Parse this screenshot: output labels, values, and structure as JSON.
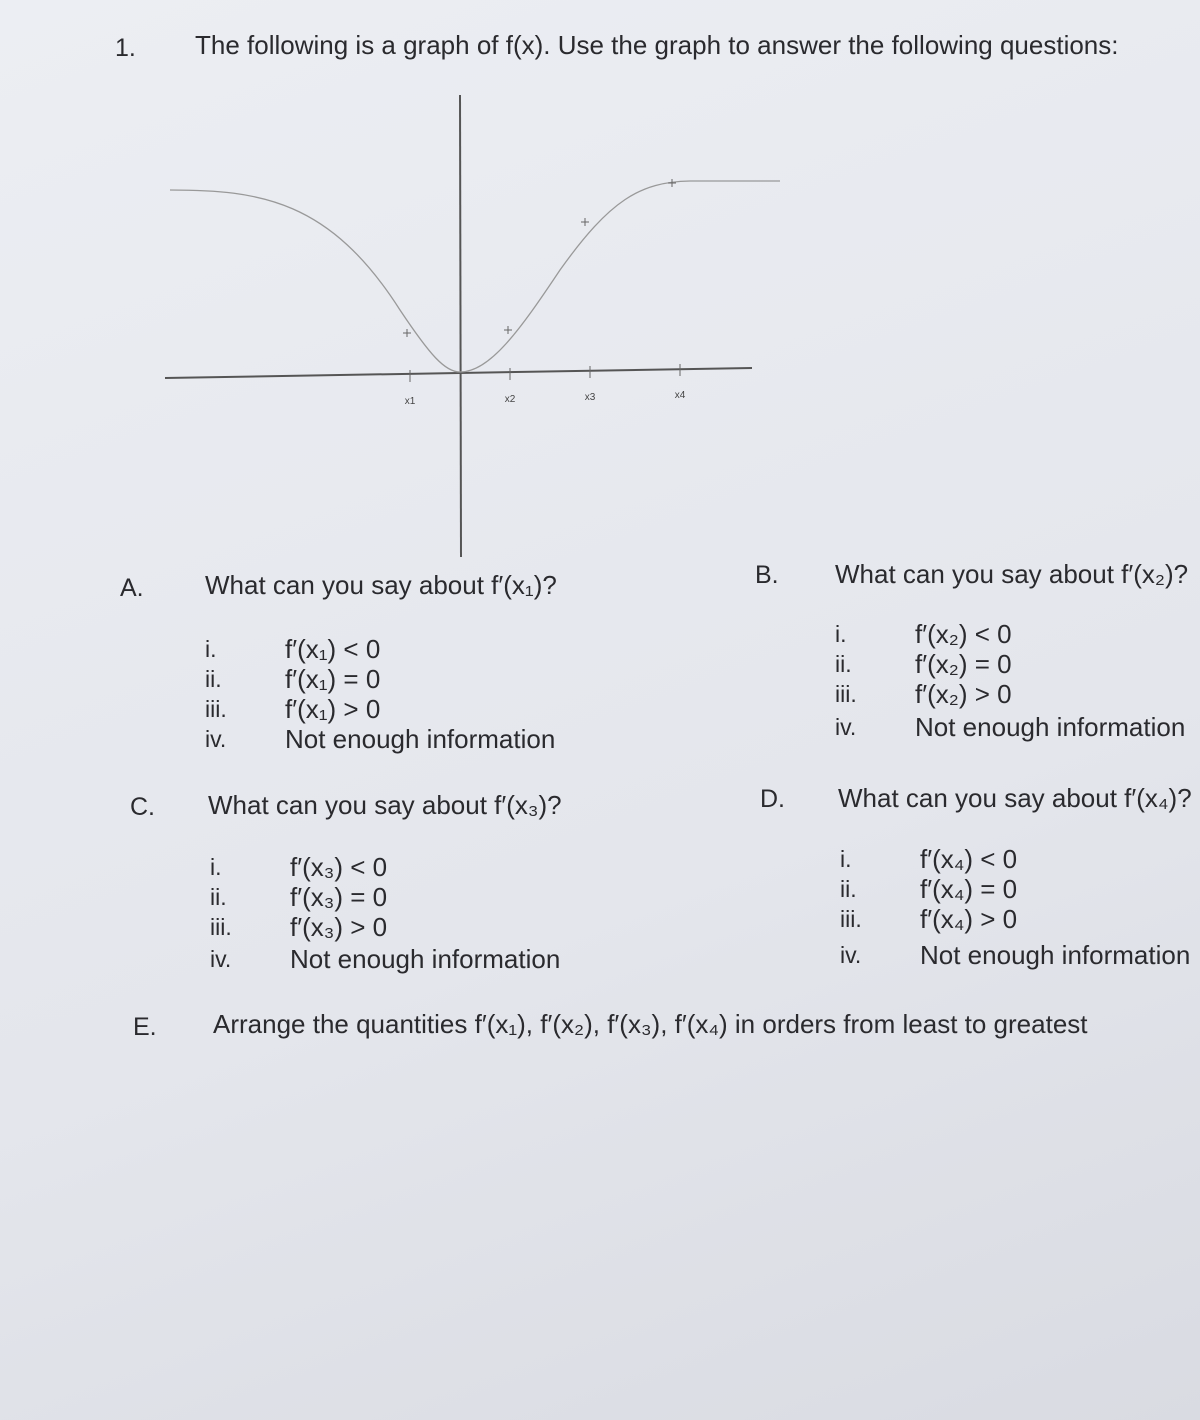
{
  "question": {
    "number": "1.",
    "prompt": "The following is a graph of f(x). Use the graph to answer the following questions:"
  },
  "graph": {
    "labels": [
      "x1",
      "x2",
      "x3",
      "x4"
    ]
  },
  "parts": [
    {
      "letter": "A.",
      "question": "What can you say about f′(x₁)?",
      "options": [
        {
          "numeral": "i.",
          "text": "f′(x₁) < 0"
        },
        {
          "numeral": "ii.",
          "text": "f′(x₁) = 0"
        },
        {
          "numeral": "iii.",
          "text": "f′(x₁) > 0"
        },
        {
          "numeral": "iv.",
          "text": "Not enough information"
        }
      ]
    },
    {
      "letter": "B.",
      "question": "What can you say about f′(x₂)?",
      "options": [
        {
          "numeral": "i.",
          "text": "f′(x₂) < 0"
        },
        {
          "numeral": "ii.",
          "text": "f′(x₂) = 0"
        },
        {
          "numeral": "iii.",
          "text": "f′(x₂) > 0"
        },
        {
          "numeral": "iv.",
          "text": "Not enough information"
        }
      ]
    },
    {
      "letter": "C.",
      "question": "What can you say about f′(x₃)?",
      "options": [
        {
          "numeral": "i.",
          "text": "f′(x₃) < 0"
        },
        {
          "numeral": "ii.",
          "text": "f′(x₃) = 0"
        },
        {
          "numeral": "iii.",
          "text": "f′(x₃) > 0"
        },
        {
          "numeral": "iv.",
          "text": "Not enough information"
        }
      ]
    },
    {
      "letter": "D.",
      "question": "What can you say about f′(x₄)?",
      "options": [
        {
          "numeral": "i.",
          "text": "f′(x₄) < 0"
        },
        {
          "numeral": "ii.",
          "text": "f′(x₄) = 0"
        },
        {
          "numeral": "iii.",
          "text": "f′(x₄) > 0"
        },
        {
          "numeral": "iv.",
          "text": "Not enough information"
        }
      ]
    },
    {
      "letter": "E.",
      "question": "Arrange the quantities f′(x₁), f′(x₂), f′(x₃), f′(x₄) in orders from least to greatest"
    }
  ]
}
